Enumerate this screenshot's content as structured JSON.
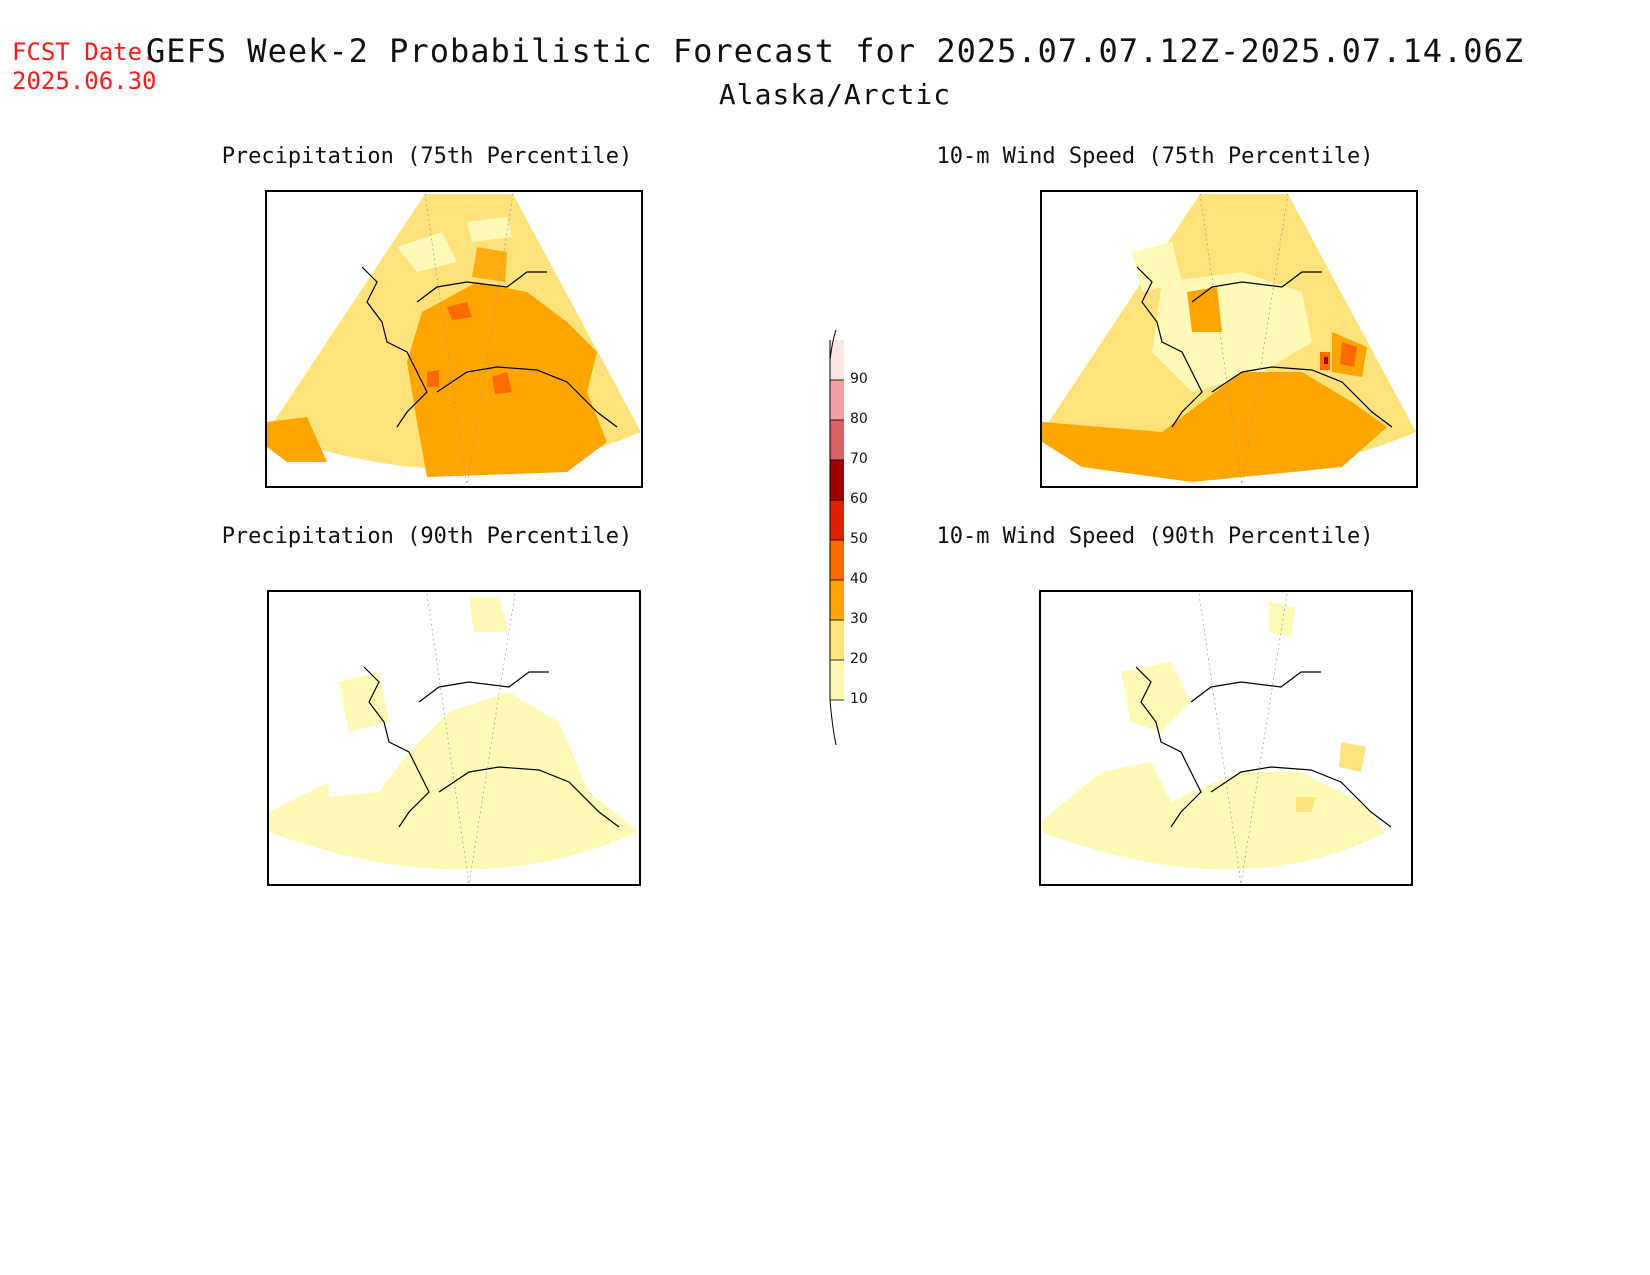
{
  "forecast_date": {
    "label": "FCST Date:",
    "value": "2025.06.30"
  },
  "title": "GEFS Week-2 Probabilistic Forecast for 2025.07.07.12Z-2025.07.14.06Z",
  "subtitle": "Alaska/Arctic",
  "panels": [
    {
      "id": "precip75",
      "title": "Precipitation (75th Percentile)"
    },
    {
      "id": "wind75",
      "title": "10-m Wind Speed (75th Percentile)"
    },
    {
      "id": "precip90",
      "title": "Precipitation (90th Percentile)"
    },
    {
      "id": "wind90",
      "title": "10-m Wind Speed (90th Percentile)"
    }
  ],
  "colorbar": {
    "levels": [
      "10",
      "20",
      "30",
      "40",
      "50",
      "60",
      "70",
      "80",
      "90"
    ],
    "colors": [
      "#fff9b8",
      "#ffe27a",
      "#ffa500",
      "#ff6a00",
      "#e01e00",
      "#a00000",
      "#d96060",
      "#f2a0a0",
      "#ffe6e6"
    ]
  }
}
